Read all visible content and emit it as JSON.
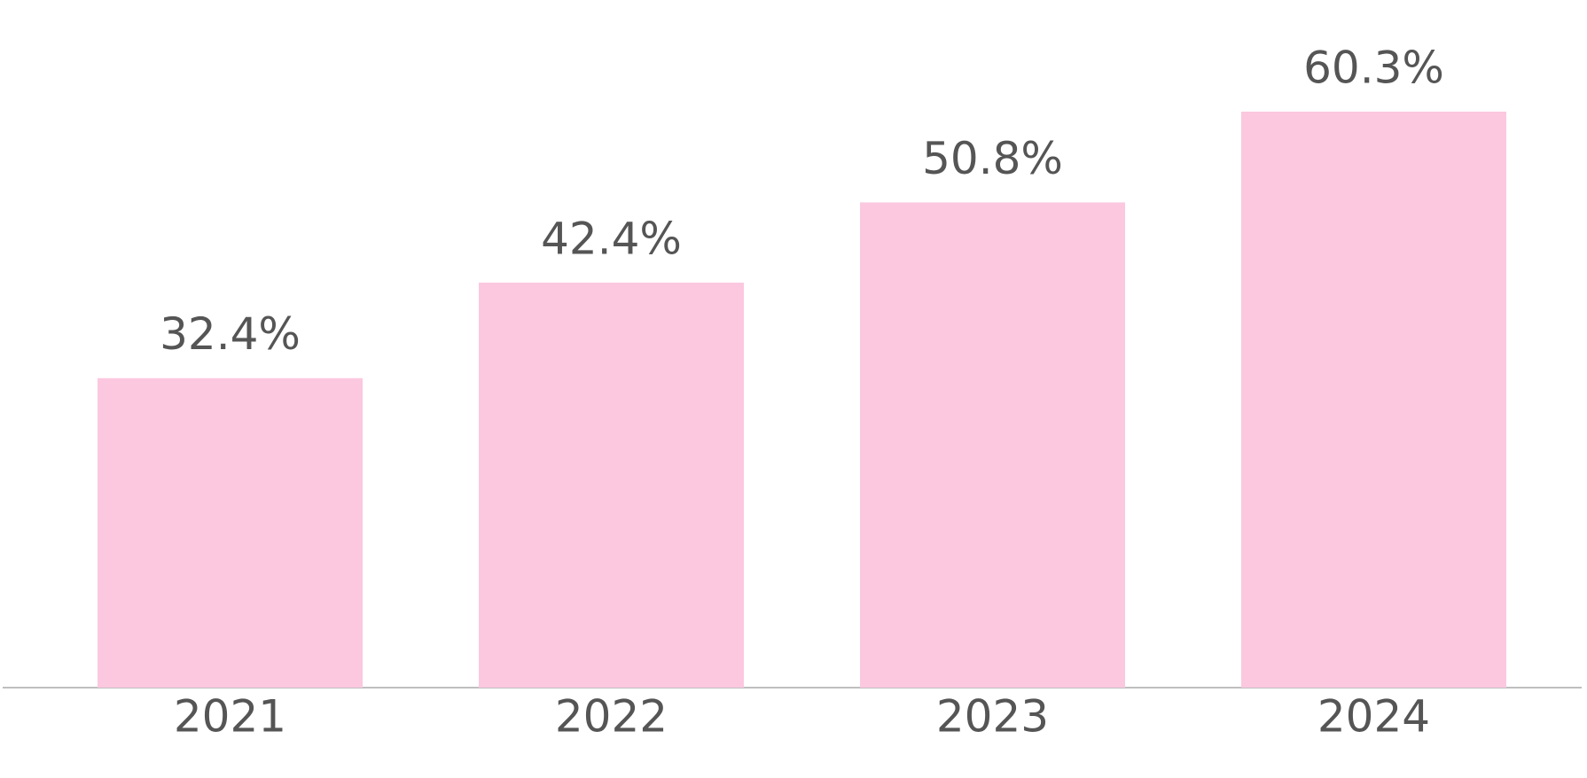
{
  "chart_data": {
    "type": "bar",
    "categories": [
      "2021",
      "2022",
      "2023",
      "2024"
    ],
    "values": [
      32.4,
      42.4,
      50.8,
      60.3
    ],
    "value_labels": [
      "32.4%",
      "42.4%",
      "50.8%",
      "60.3%"
    ],
    "color": "#fbc8df"
  }
}
